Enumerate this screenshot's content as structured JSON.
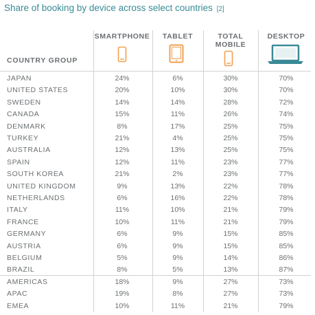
{
  "title": "Share of booking by device across select countries",
  "title_ref": "[2]",
  "icons": {
    "smartphone": "smartphone-icon",
    "tablet": "tablet-icon",
    "total_mobile": "mobile-icon",
    "desktop": "laptop-icon"
  },
  "colors": {
    "title": "#3a8a96",
    "device_orange": "#f0a050",
    "desktop_teal": "#3a8a96",
    "text": "#6b6f72",
    "rule": "#d2d2d2"
  },
  "chart_data": {
    "type": "table",
    "title": "Share of booking by device across select countries",
    "columns": [
      "COUNTRY GROUP",
      "SMARTPHONE",
      "TABLET",
      "TOTAL MOBILE",
      "DESKTOP"
    ],
    "rows": [
      [
        "JAPAN",
        "24%",
        "6%",
        "30%",
        "70%"
      ],
      [
        "UNITED STATES",
        "20%",
        "10%",
        "30%",
        "70%"
      ],
      [
        "SWEDEN",
        "14%",
        "14%",
        "28%",
        "72%"
      ],
      [
        "CANADA",
        "15%",
        "11%",
        "26%",
        "74%"
      ],
      [
        "DENMARK",
        "8%",
        "17%",
        "25%",
        "75%"
      ],
      [
        "TURKEY",
        "21%",
        "4%",
        "25%",
        "75%"
      ],
      [
        "AUSTRALIA",
        "12%",
        "13%",
        "25%",
        "75%"
      ],
      [
        "SPAIN",
        "12%",
        "11%",
        "23%",
        "77%"
      ],
      [
        "SOUTH KOREA",
        "21%",
        "2%",
        "23%",
        "77%"
      ],
      [
        "UNITED KINGDOM",
        "9%",
        "13%",
        "22%",
        "78%"
      ],
      [
        "NETHERLANDS",
        "6%",
        "16%",
        "22%",
        "78%"
      ],
      [
        "ITALY",
        "11%",
        "10%",
        "21%",
        "79%"
      ],
      [
        "FRANCE",
        "10%",
        "11%",
        "21%",
        "79%"
      ],
      [
        "GERMANY",
        "6%",
        "9%",
        "15%",
        "85%"
      ],
      [
        "AUSTRIA",
        "6%",
        "9%",
        "15%",
        "85%"
      ],
      [
        "BELGIUM",
        "5%",
        "9%",
        "14%",
        "86%"
      ],
      [
        "BRAZIL",
        "8%",
        "5%",
        "13%",
        "87%"
      ],
      [
        "AMERICAS",
        "18%",
        "9%",
        "27%",
        "73%"
      ],
      [
        "APAC",
        "19%",
        "8%",
        "27%",
        "73%"
      ],
      [
        "EMEA",
        "10%",
        "11%",
        "21%",
        "79%"
      ]
    ]
  }
}
